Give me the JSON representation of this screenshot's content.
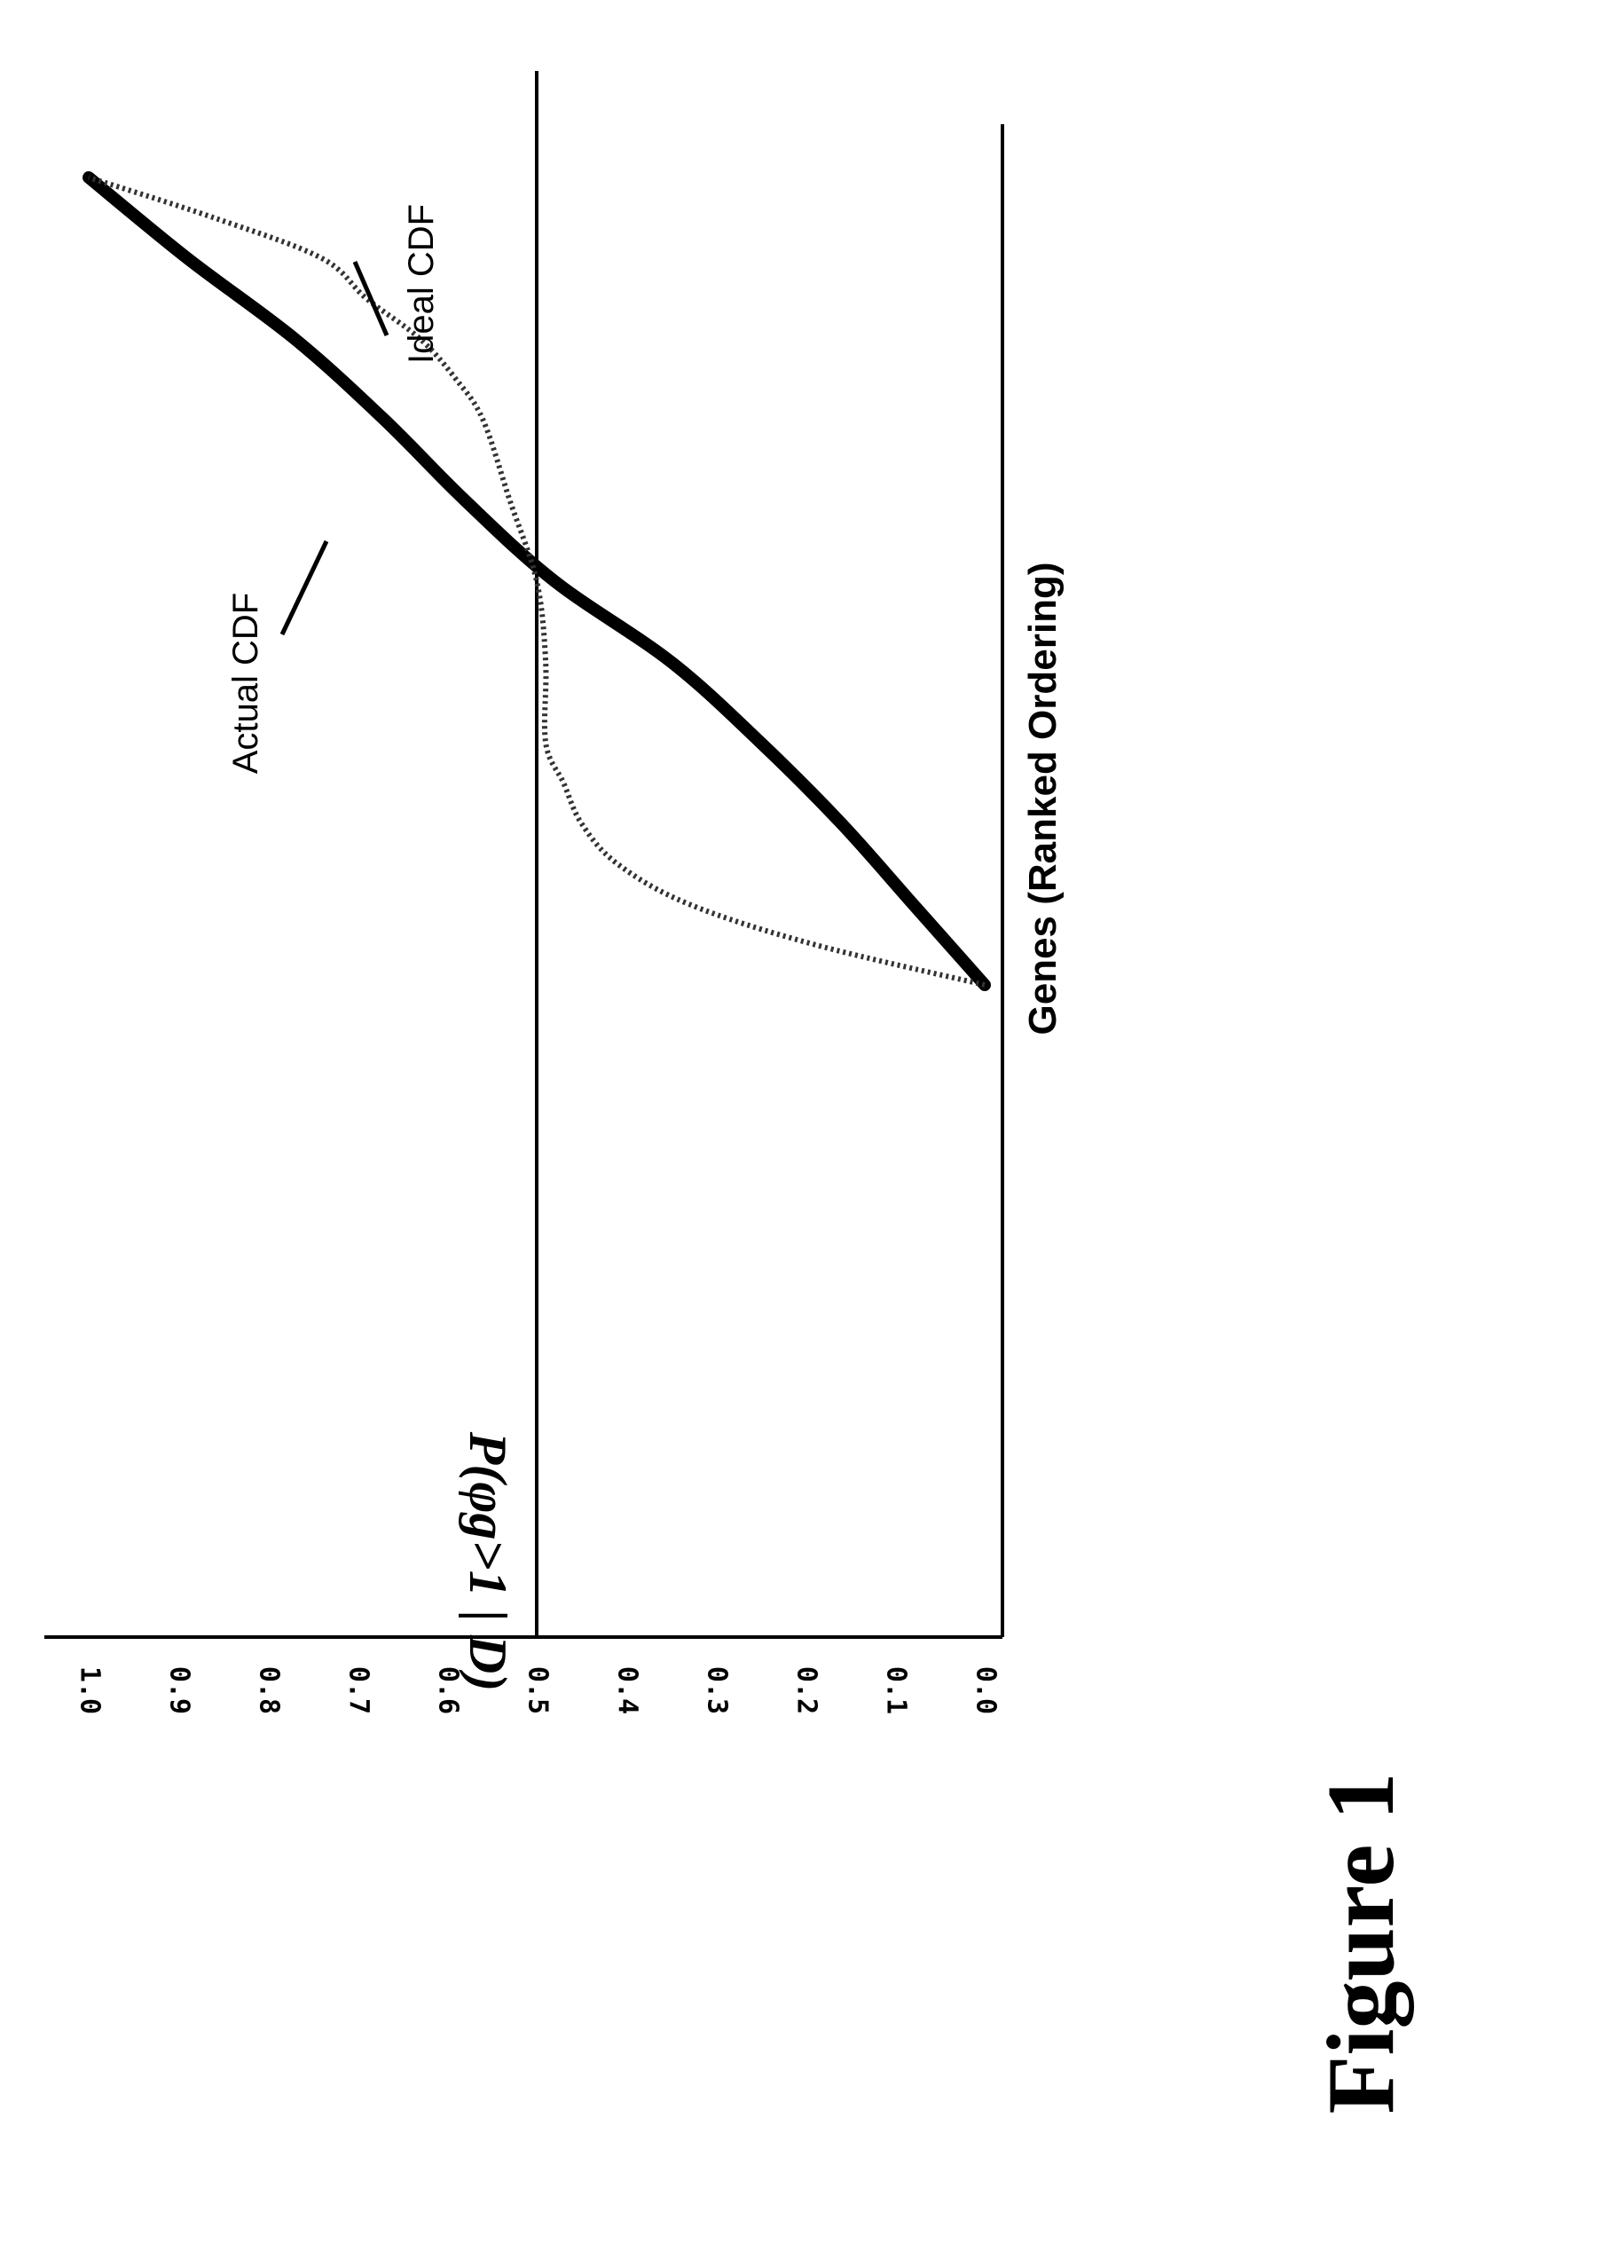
{
  "figure_label": "Figure 1",
  "chart_data": {
    "type": "line",
    "orientation": "rotated 90 degrees counter-clockwise",
    "xlabel": "Genes (Ranked Ordering)",
    "ylabel": "P(φg>1 | D)",
    "ylim": [
      0,
      1
    ],
    "yticks": [
      "0.0",
      "0.1",
      "0.2",
      "0.3",
      "0.4",
      "0.5",
      "0.6",
      "0.7",
      "0.8",
      "0.9",
      "1.0"
    ],
    "reference_line": 0.5,
    "grid": false,
    "series": [
      {
        "name": "Actual CDF",
        "style": "thick solid",
        "color": "#000000",
        "x": [
          0,
          0.1,
          0.2,
          0.3,
          0.4,
          0.5,
          0.6,
          0.7,
          0.8,
          0.9,
          1.0
        ],
        "y": [
          0.0,
          0.08,
          0.16,
          0.25,
          0.35,
          0.48,
          0.58,
          0.67,
          0.77,
          0.89,
          1.0
        ]
      },
      {
        "name": "Ideal CDF",
        "style": "dotted",
        "color": "#333333",
        "x": [
          0,
          0.05,
          0.1,
          0.15,
          0.2,
          0.25,
          0.3,
          0.4,
          0.5,
          0.6,
          0.7,
          0.75,
          0.8,
          0.85,
          0.9,
          0.95,
          1.0
        ],
        "y": [
          0.0,
          0.19,
          0.33,
          0.41,
          0.45,
          0.47,
          0.49,
          0.49,
          0.5,
          0.53,
          0.56,
          0.59,
          0.63,
          0.69,
          0.74,
          0.86,
          1.0
        ]
      }
    ],
    "annotations": [
      {
        "text": "Actual CDF",
        "series": "Actual CDF"
      },
      {
        "text": "Ideal CDF",
        "series": "Ideal CDF"
      }
    ]
  }
}
